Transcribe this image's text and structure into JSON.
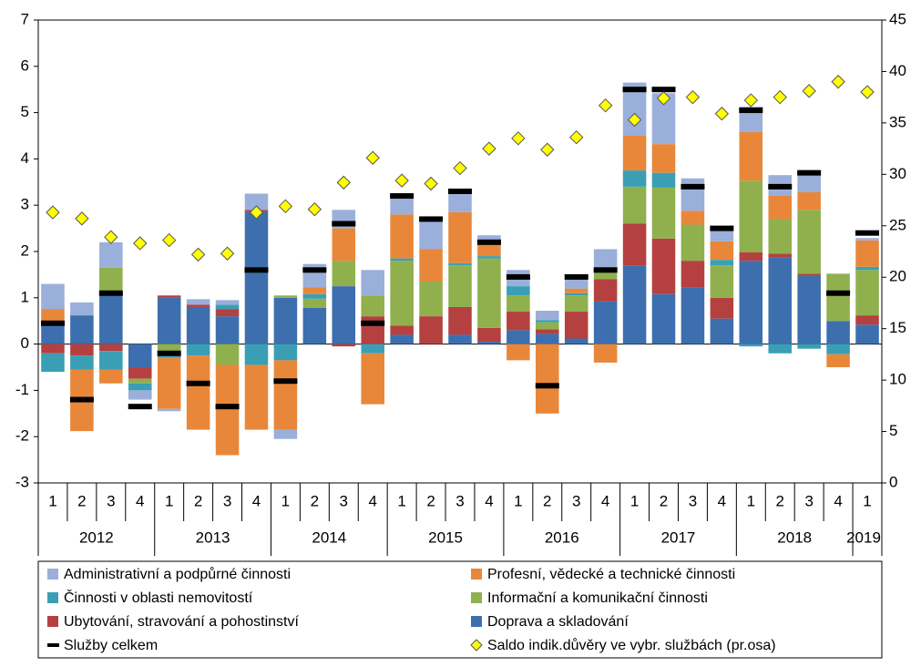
{
  "chart_data": {
    "type": "bar",
    "categories": [
      [
        "2012",
        "1"
      ],
      [
        "2012",
        "2"
      ],
      [
        "2012",
        "3"
      ],
      [
        "2012",
        "4"
      ],
      [
        "2013",
        "1"
      ],
      [
        "2013",
        "2"
      ],
      [
        "2013",
        "3"
      ],
      [
        "2013",
        "4"
      ],
      [
        "2014",
        "1"
      ],
      [
        "2014",
        "2"
      ],
      [
        "2014",
        "3"
      ],
      [
        "2014",
        "4"
      ],
      [
        "2015",
        "1"
      ],
      [
        "2015",
        "2"
      ],
      [
        "2015",
        "3"
      ],
      [
        "2015",
        "4"
      ],
      [
        "2016",
        "1"
      ],
      [
        "2016",
        "2"
      ],
      [
        "2016",
        "3"
      ],
      [
        "2016",
        "4"
      ],
      [
        "2017",
        "1"
      ],
      [
        "2017",
        "2"
      ],
      [
        "2017",
        "3"
      ],
      [
        "2017",
        "4"
      ],
      [
        "2018",
        "1"
      ],
      [
        "2018",
        "2"
      ],
      [
        "2018",
        "3"
      ],
      [
        "2018",
        "4"
      ],
      [
        "2019",
        "1"
      ]
    ],
    "ylim": [
      -3,
      7
    ],
    "yticks": [
      -3,
      -2,
      -1,
      0,
      1,
      2,
      3,
      4,
      5,
      6,
      7
    ],
    "y2lim": [
      0,
      45
    ],
    "y2ticks": [
      0,
      5,
      10,
      15,
      20,
      25,
      30,
      35,
      40,
      45
    ],
    "series": [
      {
        "name": "Administrativní a podpůrné činnosti",
        "type": "bar",
        "color": "#9aafd9",
        "values": [
          0.55,
          0.28,
          0.55,
          -0.2,
          -0.05,
          0.12,
          0.1,
          0.35,
          -0.2,
          0.5,
          0.4,
          0.55,
          0.45,
          0.6,
          0.45,
          0.2,
          0.35,
          0.2,
          0.2,
          0.45,
          1.15,
          1.1,
          0.7,
          0.25,
          0.55,
          0.45,
          0.42,
          0,
          0.05
        ]
      },
      {
        "name": "Profesní, vědecké a technické činnosti",
        "type": "bar",
        "color": "#e8873a",
        "values": [
          0.25,
          -1.33,
          -0.3,
          0,
          -1.1,
          -1.6,
          -1.95,
          -1.4,
          -1.5,
          0.15,
          0.7,
          -1.1,
          0.95,
          0.7,
          1.1,
          0.25,
          -0.35,
          -1.5,
          0.1,
          -0.4,
          0.75,
          0.62,
          0.3,
          0.4,
          1.05,
          0.5,
          0.38,
          -0.28,
          0.57
        ]
      },
      {
        "name": "Činnosti v oblasti nemovitostí",
        "type": "bar",
        "color": "#3a9fb5",
        "values": [
          -0.4,
          -0.3,
          -0.4,
          -0.15,
          -0.1,
          -0.25,
          0.1,
          -0.45,
          -0.35,
          0.1,
          0,
          -0.2,
          0.05,
          0,
          0.05,
          0.05,
          0.2,
          0.05,
          0.05,
          0.05,
          0.35,
          0.32,
          0,
          0.12,
          -0.05,
          -0.2,
          -0.1,
          -0.22,
          0.07
        ]
      },
      {
        "name": "Informační a komunikační činnosti",
        "type": "bar",
        "color": "#8fb04d",
        "values": [
          0.05,
          0,
          0.55,
          -0.1,
          -0.2,
          0,
          -0.45,
          0,
          0.05,
          0.2,
          0.55,
          0.45,
          1.4,
          0.75,
          0.9,
          1.5,
          0.35,
          0.15,
          0.35,
          0.15,
          0.8,
          1.1,
          0.78,
          0.7,
          1.55,
          0.75,
          1.38,
          1.02,
          0.98
        ]
      },
      {
        "name": "Ubytování, stravování a pohostinství",
        "type": "bar",
        "color": "#b54040",
        "values": [
          -0.2,
          -0.25,
          -0.15,
          -0.25,
          0.05,
          0.05,
          0.15,
          0.05,
          0,
          0,
          -0.05,
          0.6,
          0.2,
          0.6,
          0.6,
          0.3,
          0.4,
          0.1,
          0.58,
          0.48,
          0.9,
          1.2,
          0.58,
          0.45,
          0.18,
          0.07,
          0.05,
          0,
          0.2
        ]
      },
      {
        "name": "Doprava a skladování",
        "type": "bar",
        "color": "#3d6fae",
        "values": [
          0.45,
          0.62,
          1.1,
          -0.5,
          1.0,
          0.8,
          0.6,
          2.85,
          1.0,
          0.78,
          1.25,
          0,
          0.2,
          0,
          0.2,
          0.05,
          0.3,
          0.22,
          0.12,
          0.92,
          1.7,
          1.08,
          1.22,
          0.55,
          1.8,
          1.88,
          1.47,
          0.5,
          0.42
        ]
      },
      {
        "name": "Služby celkem",
        "type": "marker",
        "color": "#000000",
        "values": [
          0.45,
          -1.2,
          1.1,
          -1.35,
          -0.2,
          -0.85,
          -1.35,
          1.6,
          -0.8,
          1.6,
          2.6,
          0.45,
          3.2,
          2.7,
          3.3,
          2.2,
          1.45,
          -0.9,
          1.45,
          1.6,
          5.5,
          5.5,
          3.4,
          2.5,
          5.05,
          3.4,
          3.7,
          1.1,
          2.4
        ]
      },
      {
        "name": "Saldo indik.důvěry ve vybr. službách (pr.osa)",
        "type": "scatter",
        "axis": "y2",
        "color": "#ffff00",
        "values": [
          26.3,
          25.7,
          23.9,
          23.3,
          23.6,
          22.2,
          22.3,
          26.3,
          26.9,
          26.6,
          29.2,
          31.6,
          29.4,
          29.1,
          30.6,
          32.5,
          33.5,
          32.4,
          33.6,
          36.7,
          35.3,
          37.4,
          37.5,
          35.9,
          37.2,
          37.5,
          38.1,
          39.0,
          38.0
        ]
      }
    ]
  }
}
